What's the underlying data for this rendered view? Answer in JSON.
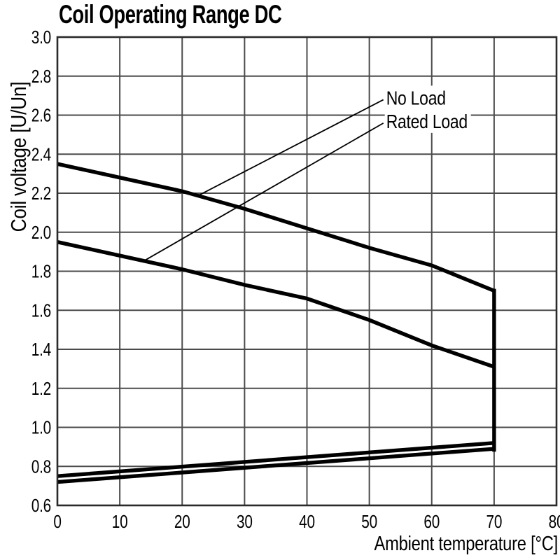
{
  "chart_data": {
    "type": "line",
    "title": "Coil Operating Range DC",
    "grid": true,
    "colors": {
      "curve": "#000000",
      "grid": "#4b4b4b",
      "frame": "#2a2a2a",
      "text": "#000000",
      "background": "#ffffff"
    },
    "x_axis": {
      "label": "Ambient temperature [°C]",
      "range": [
        0,
        80
      ],
      "tick_values": [
        0,
        10,
        20,
        30,
        40,
        50,
        60,
        70,
        80
      ],
      "tick_labels": [
        "0",
        "10",
        "20",
        "30",
        "40",
        "50",
        "60",
        "70",
        "80"
      ]
    },
    "y_axis": {
      "label": "Coil voltage [U/Un]",
      "range": [
        0.6,
        3.0
      ],
      "tick_values": [
        3.0,
        2.8,
        2.6,
        2.4,
        2.2,
        2.0,
        1.8,
        1.6,
        1.4,
        1.2,
        1.0,
        0.8,
        0.6
      ],
      "tick_labels": [
        "3.0",
        "2.8",
        "2.6",
        "2.4",
        "2.2",
        "2.0",
        "1.8",
        "1.6",
        "1.4",
        "1.2",
        "1.0",
        "0.8",
        "0.6"
      ]
    },
    "series": [
      {
        "name": "no-load-upper-limit",
        "label": "No Load",
        "points": [
          [
            0,
            2.35
          ],
          [
            10,
            2.28
          ],
          [
            20,
            2.21
          ],
          [
            30,
            2.12
          ],
          [
            40,
            2.02
          ],
          [
            50,
            1.92
          ],
          [
            60,
            1.83
          ],
          [
            70,
            1.7
          ]
        ]
      },
      {
        "name": "rated-load-upper-limit",
        "label": "Rated Load",
        "points": [
          [
            0,
            1.95
          ],
          [
            10,
            1.88
          ],
          [
            20,
            1.81
          ],
          [
            30,
            1.73
          ],
          [
            40,
            1.66
          ],
          [
            50,
            1.55
          ],
          [
            60,
            1.42
          ],
          [
            70,
            1.31
          ]
        ]
      },
      {
        "name": "max-temperature-limit-70C",
        "points": [
          [
            70,
            1.7
          ],
          [
            70,
            0.885
          ]
        ]
      },
      {
        "name": "pickup-voltage-upper",
        "points": [
          [
            0,
            0.75
          ],
          [
            70,
            0.92
          ]
        ]
      },
      {
        "name": "pickup-voltage-lower",
        "points": [
          [
            0,
            0.72
          ],
          [
            70,
            0.89
          ]
        ]
      }
    ],
    "annotations": [
      {
        "text": "No Load",
        "label_xy": [
          52.7,
          2.69
        ],
        "target_xy": [
          22.7,
          2.19
        ]
      },
      {
        "text": "Rated Load",
        "label_xy": [
          52.7,
          2.57
        ],
        "target_xy": [
          13.7,
          1.85
        ]
      }
    ],
    "legend": "none"
  }
}
